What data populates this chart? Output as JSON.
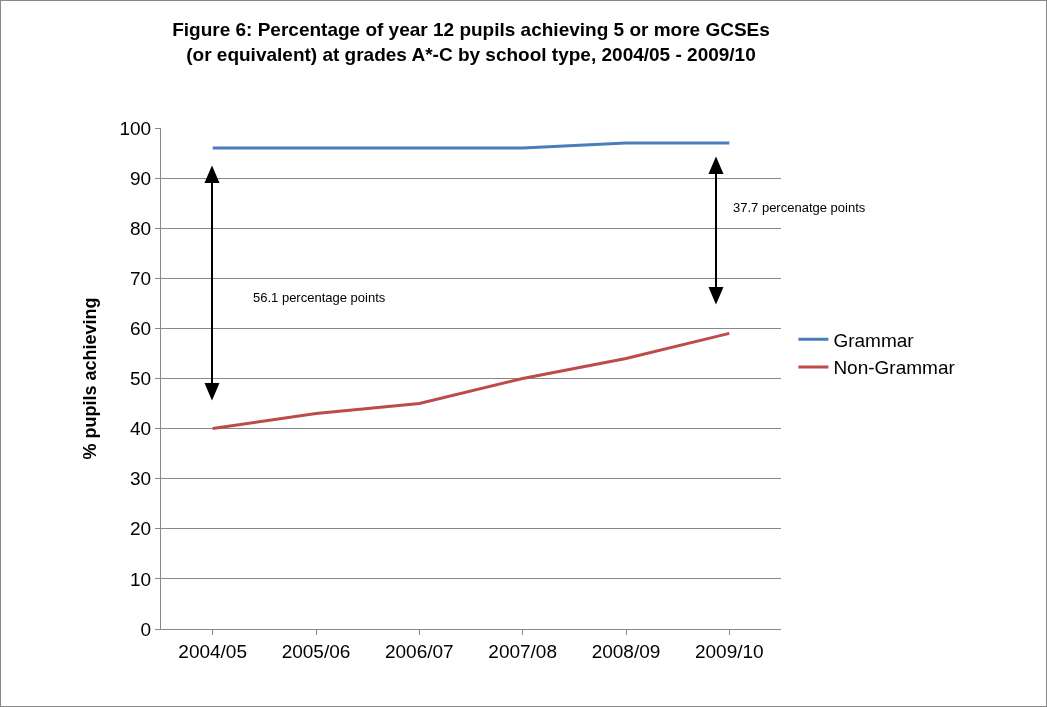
{
  "chart_data": {
    "type": "line",
    "title": "Figure 6: Percentage of year 12 pupils achieving 5 or more GCSEs (or equivalent) at grades A*-C by school type, 2004/05 - 2009/10",
    "ylabel": "% pupils achieving",
    "categories": [
      "2004/05",
      "2005/06",
      "2006/07",
      "2007/08",
      "2008/09",
      "2009/10"
    ],
    "series": [
      {
        "name": "Grammar",
        "color": "#4a7ebb",
        "values": [
          96,
          96,
          96,
          96,
          97,
          97
        ]
      },
      {
        "name": "Non-Grammar",
        "color": "#be4b48",
        "values": [
          40,
          43,
          45,
          50,
          54,
          59
        ]
      }
    ],
    "annotations": [
      "56.1 percentage points",
      "37.7 percenatge points"
    ],
    "ylim": [
      0,
      100
    ],
    "yticks": [
      0,
      10,
      20,
      30,
      40,
      50,
      60,
      70,
      80,
      90,
      100
    ],
    "grid": "y",
    "legend": "right",
    "marker": "none",
    "line_style": "solid"
  }
}
